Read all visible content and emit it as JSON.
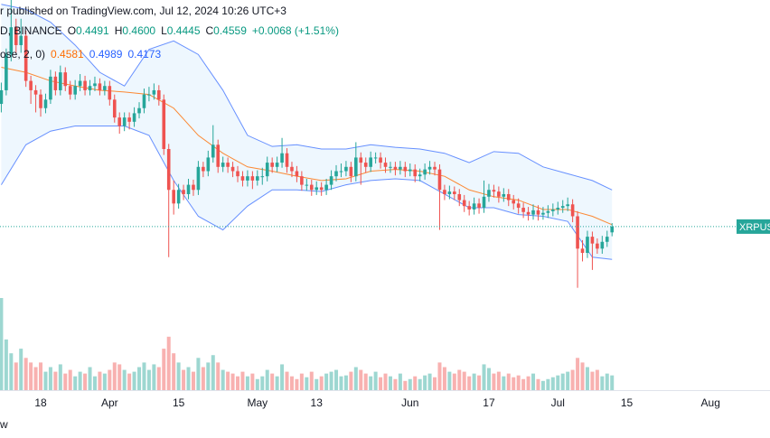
{
  "chart_data": {
    "type": "candlestick",
    "title": "r published on TradingView.com, Jul 12, 2024 10:26 UTC+3",
    "symbol": "D, BINANCE",
    "ohlc_labels": [
      "O",
      "H",
      "L",
      "C"
    ],
    "ohlc_value_labels": [
      "0.4491",
      "0.4600",
      "0.4445",
      "0.4559"
    ],
    "change": "+0.0068 (+1.51%)",
    "indicator": "ose, 2, 0)",
    "price_label": "XRPUSD",
    "footer": "w",
    "up_color": "#26a69a",
    "down_color": "#ef5350",
    "xlim": [
      -8.26,
      148.07
    ],
    "ylim": [
      0.372,
      0.722
    ],
    "volume_lim": [
      0,
      100
    ],
    "xticks": [
      {
        "value": 0,
        "label": "18"
      },
      {
        "value": 14,
        "label": "Apr"
      },
      {
        "value": 28,
        "label": "15"
      },
      {
        "value": 44,
        "label": "May"
      },
      {
        "value": 56,
        "label": "13"
      },
      {
        "value": 75,
        "label": "Jun"
      },
      {
        "value": 91,
        "label": "17"
      },
      {
        "value": 105,
        "label": "Jul"
      },
      {
        "value": 119,
        "label": "15"
      },
      {
        "value": 136,
        "label": "Aug"
      }
    ],
    "x": [
      -8,
      -7,
      -6,
      -5,
      -4,
      -3,
      -2,
      -1,
      0,
      1,
      2,
      3,
      4,
      5,
      6,
      7,
      8,
      9,
      10,
      11,
      12,
      13,
      14,
      15,
      16,
      17,
      18,
      19,
      20,
      21,
      22,
      23,
      24,
      25,
      26,
      27,
      28,
      29,
      30,
      31,
      32,
      33,
      34,
      35,
      36,
      37,
      38,
      39,
      40,
      41,
      42,
      43,
      44,
      45,
      46,
      47,
      48,
      49,
      50,
      51,
      52,
      53,
      54,
      55,
      56,
      57,
      58,
      59,
      60,
      61,
      62,
      63,
      64,
      65,
      66,
      67,
      68,
      69,
      70,
      71,
      72,
      73,
      74,
      75,
      76,
      77,
      78,
      79,
      80,
      81,
      82,
      83,
      84,
      85,
      86,
      87,
      88,
      89,
      90,
      91,
      92,
      93,
      94,
      95,
      96,
      97,
      98,
      99,
      100,
      101,
      102,
      103,
      104,
      105,
      106,
      107,
      108,
      109,
      110,
      111,
      112,
      113,
      114,
      115,
      116
    ],
    "ohlc": [
      [
        0.6,
        0.625,
        0.59,
        0.616
      ],
      [
        0.616,
        0.665,
        0.61,
        0.658
      ],
      [
        0.658,
        0.722,
        0.65,
        0.69
      ],
      [
        0.69,
        0.7,
        0.66,
        0.669
      ],
      [
        0.669,
        0.7,
        0.66,
        0.68
      ],
      [
        0.68,
        0.686,
        0.62,
        0.627
      ],
      [
        0.627,
        0.633,
        0.6,
        0.616
      ],
      [
        0.616,
        0.622,
        0.59,
        0.611
      ],
      [
        0.611,
        0.617,
        0.585,
        0.595
      ],
      [
        0.595,
        0.612,
        0.589,
        0.605
      ],
      [
        0.605,
        0.64,
        0.6,
        0.632
      ],
      [
        0.632,
        0.638,
        0.61,
        0.616
      ],
      [
        0.616,
        0.645,
        0.61,
        0.637
      ],
      [
        0.637,
        0.643,
        0.615,
        0.621
      ],
      [
        0.621,
        0.627,
        0.605,
        0.611
      ],
      [
        0.611,
        0.628,
        0.605,
        0.621
      ],
      [
        0.621,
        0.635,
        0.615,
        0.627
      ],
      [
        0.627,
        0.633,
        0.61,
        0.616
      ],
      [
        0.616,
        0.628,
        0.61,
        0.621
      ],
      [
        0.621,
        0.632,
        0.615,
        0.624
      ],
      [
        0.624,
        0.63,
        0.61,
        0.616
      ],
      [
        0.616,
        0.627,
        0.61,
        0.621
      ],
      [
        0.621,
        0.627,
        0.598,
        0.605
      ],
      [
        0.605,
        0.611,
        0.578,
        0.584
      ],
      [
        0.584,
        0.59,
        0.565,
        0.574
      ],
      [
        0.574,
        0.59,
        0.568,
        0.584
      ],
      [
        0.584,
        0.59,
        0.57,
        0.579
      ],
      [
        0.579,
        0.596,
        0.573,
        0.589
      ],
      [
        0.589,
        0.602,
        0.583,
        0.595
      ],
      [
        0.595,
        0.618,
        0.589,
        0.611
      ],
      [
        0.611,
        0.62,
        0.603,
        0.611
      ],
      [
        0.611,
        0.624,
        0.605,
        0.616
      ],
      [
        0.616,
        0.622,
        0.598,
        0.605
      ],
      [
        0.605,
        0.611,
        0.54,
        0.547
      ],
      [
        0.547,
        0.553,
        0.42,
        0.499
      ],
      [
        0.499,
        0.51,
        0.47,
        0.483
      ],
      [
        0.483,
        0.506,
        0.477,
        0.499
      ],
      [
        0.499,
        0.505,
        0.487,
        0.494
      ],
      [
        0.494,
        0.512,
        0.488,
        0.505
      ],
      [
        0.505,
        0.511,
        0.492,
        0.499
      ],
      [
        0.499,
        0.533,
        0.493,
        0.526
      ],
      [
        0.526,
        0.532,
        0.514,
        0.521
      ],
      [
        0.521,
        0.545,
        0.515,
        0.537
      ],
      [
        0.537,
        0.575,
        0.531,
        0.552
      ],
      [
        0.552,
        0.558,
        0.519,
        0.526
      ],
      [
        0.526,
        0.538,
        0.52,
        0.531
      ],
      [
        0.531,
        0.537,
        0.519,
        0.526
      ],
      [
        0.526,
        0.532,
        0.514,
        0.521
      ],
      [
        0.521,
        0.527,
        0.508,
        0.515
      ],
      [
        0.515,
        0.521,
        0.503,
        0.51
      ],
      [
        0.51,
        0.522,
        0.503,
        0.515
      ],
      [
        0.515,
        0.521,
        0.5,
        0.51
      ],
      [
        0.51,
        0.522,
        0.504,
        0.515
      ],
      [
        0.515,
        0.525,
        0.505,
        0.515
      ],
      [
        0.515,
        0.538,
        0.509,
        0.531
      ],
      [
        0.531,
        0.537,
        0.519,
        0.526
      ],
      [
        0.526,
        0.538,
        0.52,
        0.531
      ],
      [
        0.531,
        0.56,
        0.525,
        0.542
      ],
      [
        0.542,
        0.548,
        0.519,
        0.526
      ],
      [
        0.526,
        0.532,
        0.514,
        0.521
      ],
      [
        0.521,
        0.527,
        0.508,
        0.515
      ],
      [
        0.515,
        0.521,
        0.498,
        0.505
      ],
      [
        0.505,
        0.512,
        0.498,
        0.505
      ],
      [
        0.505,
        0.511,
        0.492,
        0.499
      ],
      [
        0.499,
        0.509,
        0.493,
        0.502
      ],
      [
        0.502,
        0.508,
        0.492,
        0.499
      ],
      [
        0.499,
        0.512,
        0.493,
        0.505
      ],
      [
        0.505,
        0.522,
        0.499,
        0.515
      ],
      [
        0.515,
        0.528,
        0.509,
        0.521
      ],
      [
        0.521,
        0.53,
        0.514,
        0.521
      ],
      [
        0.521,
        0.533,
        0.515,
        0.526
      ],
      [
        0.526,
        0.532,
        0.508,
        0.515
      ],
      [
        0.515,
        0.555,
        0.509,
        0.537
      ],
      [
        0.537,
        0.543,
        0.505,
        0.531
      ],
      [
        0.531,
        0.537,
        0.519,
        0.526
      ],
      [
        0.526,
        0.544,
        0.52,
        0.537
      ],
      [
        0.537,
        0.543,
        0.53,
        0.537
      ],
      [
        0.537,
        0.543,
        0.524,
        0.531
      ],
      [
        0.531,
        0.537,
        0.519,
        0.526
      ],
      [
        0.526,
        0.532,
        0.519,
        0.526
      ],
      [
        0.526,
        0.532,
        0.516,
        0.523
      ],
      [
        0.523,
        0.533,
        0.517,
        0.526
      ],
      [
        0.526,
        0.532,
        0.514,
        0.521
      ],
      [
        0.521,
        0.53,
        0.515,
        0.523
      ],
      [
        0.523,
        0.529,
        0.508,
        0.515
      ],
      [
        0.515,
        0.524,
        0.509,
        0.517
      ],
      [
        0.517,
        0.53,
        0.511,
        0.523
      ],
      [
        0.523,
        0.533,
        0.517,
        0.526
      ],
      [
        0.526,
        0.532,
        0.516,
        0.523
      ],
      [
        0.523,
        0.529,
        0.452,
        0.499
      ],
      [
        0.499,
        0.505,
        0.487,
        0.494
      ],
      [
        0.494,
        0.504,
        0.488,
        0.497
      ],
      [
        0.497,
        0.503,
        0.487,
        0.494
      ],
      [
        0.494,
        0.5,
        0.48,
        0.487
      ],
      [
        0.487,
        0.493,
        0.473,
        0.48
      ],
      [
        0.48,
        0.486,
        0.469,
        0.476
      ],
      [
        0.476,
        0.49,
        0.47,
        0.483
      ],
      [
        0.483,
        0.489,
        0.471,
        0.478
      ],
      [
        0.478,
        0.51,
        0.472,
        0.491
      ],
      [
        0.491,
        0.506,
        0.485,
        0.499
      ],
      [
        0.499,
        0.505,
        0.49,
        0.497
      ],
      [
        0.497,
        0.503,
        0.484,
        0.491
      ],
      [
        0.491,
        0.501,
        0.485,
        0.494
      ],
      [
        0.494,
        0.5,
        0.48,
        0.487
      ],
      [
        0.487,
        0.493,
        0.476,
        0.483
      ],
      [
        0.483,
        0.489,
        0.471,
        0.478
      ],
      [
        0.478,
        0.484,
        0.466,
        0.473
      ],
      [
        0.473,
        0.479,
        0.463,
        0.47
      ],
      [
        0.47,
        0.482,
        0.464,
        0.475
      ],
      [
        0.475,
        0.481,
        0.463,
        0.47
      ],
      [
        0.47,
        0.479,
        0.464,
        0.472
      ],
      [
        0.472,
        0.481,
        0.466,
        0.474
      ],
      [
        0.474,
        0.483,
        0.468,
        0.476
      ],
      [
        0.476,
        0.485,
        0.47,
        0.478
      ],
      [
        0.478,
        0.487,
        0.472,
        0.48
      ],
      [
        0.48,
        0.49,
        0.474,
        0.482
      ],
      [
        0.482,
        0.488,
        0.461,
        0.468
      ],
      [
        0.468,
        0.474,
        0.384,
        0.43
      ],
      [
        0.43,
        0.44,
        0.415,
        0.425
      ],
      [
        0.425,
        0.451,
        0.419,
        0.444
      ],
      [
        0.444,
        0.45,
        0.405,
        0.436
      ],
      [
        0.436,
        0.442,
        0.424,
        0.43
      ],
      [
        0.43,
        0.445,
        0.424,
        0.438
      ],
      [
        0.438,
        0.451,
        0.432,
        0.444
      ],
      [
        0.4491,
        0.46,
        0.4445,
        0.4559
      ]
    ],
    "volume": [
      100,
      55,
      40,
      30,
      45,
      35,
      30,
      25,
      30,
      20,
      25,
      20,
      28,
      18,
      22,
      15,
      20,
      18,
      25,
      15,
      20,
      18,
      22,
      30,
      28,
      22,
      18,
      20,
      25,
      30,
      22,
      28,
      25,
      45,
      58,
      40,
      30,
      22,
      25,
      20,
      35,
      25,
      30,
      38,
      30,
      22,
      20,
      18,
      15,
      20,
      15,
      18,
      12,
      15,
      22,
      18,
      15,
      28,
      20,
      15,
      12,
      18,
      14,
      20,
      12,
      15,
      18,
      20,
      22,
      15,
      16,
      20,
      25,
      22,
      18,
      15,
      20,
      14,
      18,
      15,
      12,
      18,
      10,
      12,
      15,
      12,
      16,
      18,
      14,
      30,
      25,
      20,
      18,
      22,
      20,
      15,
      18,
      16,
      28,
      24,
      18,
      20,
      15,
      18,
      14,
      16,
      12,
      15,
      18,
      12,
      10,
      12,
      14,
      16,
      18,
      20,
      22,
      35,
      30,
      25,
      20,
      22,
      15,
      18,
      16
    ],
    "bb": {
      "x": [
        -8,
        -3,
        2,
        7,
        12,
        17,
        22,
        27,
        32,
        37,
        42,
        47,
        52,
        57,
        62,
        67,
        72,
        77,
        82,
        87,
        92,
        97,
        102,
        107,
        112,
        116
      ],
      "upper": [
        0.717,
        0.711,
        0.696,
        0.669,
        0.637,
        0.621,
        0.664,
        0.674,
        0.658,
        0.616,
        0.563,
        0.55,
        0.552,
        0.547,
        0.547,
        0.552,
        0.549,
        0.547,
        0.542,
        0.531,
        0.544,
        0.542,
        0.526,
        0.518,
        0.51,
        0.4989
      ],
      "basis": [
        0.643,
        0.637,
        0.627,
        0.621,
        0.616,
        0.614,
        0.611,
        0.595,
        0.563,
        0.542,
        0.526,
        0.521,
        0.515,
        0.51,
        0.512,
        0.521,
        0.523,
        0.521,
        0.515,
        0.499,
        0.491,
        0.487,
        0.476,
        0.476,
        0.468,
        0.4581
      ],
      "lower": [
        0.505,
        0.552,
        0.568,
        0.574,
        0.574,
        0.574,
        0.563,
        0.51,
        0.468,
        0.452,
        0.48,
        0.499,
        0.499,
        0.497,
        0.505,
        0.51,
        0.512,
        0.51,
        0.494,
        0.478,
        0.478,
        0.47,
        0.468,
        0.462,
        0.42,
        0.4173
      ],
      "band_color": "#2962ff",
      "basis_color": "#ff6d00",
      "fill": "rgba(33,150,243,0.08)"
    }
  }
}
